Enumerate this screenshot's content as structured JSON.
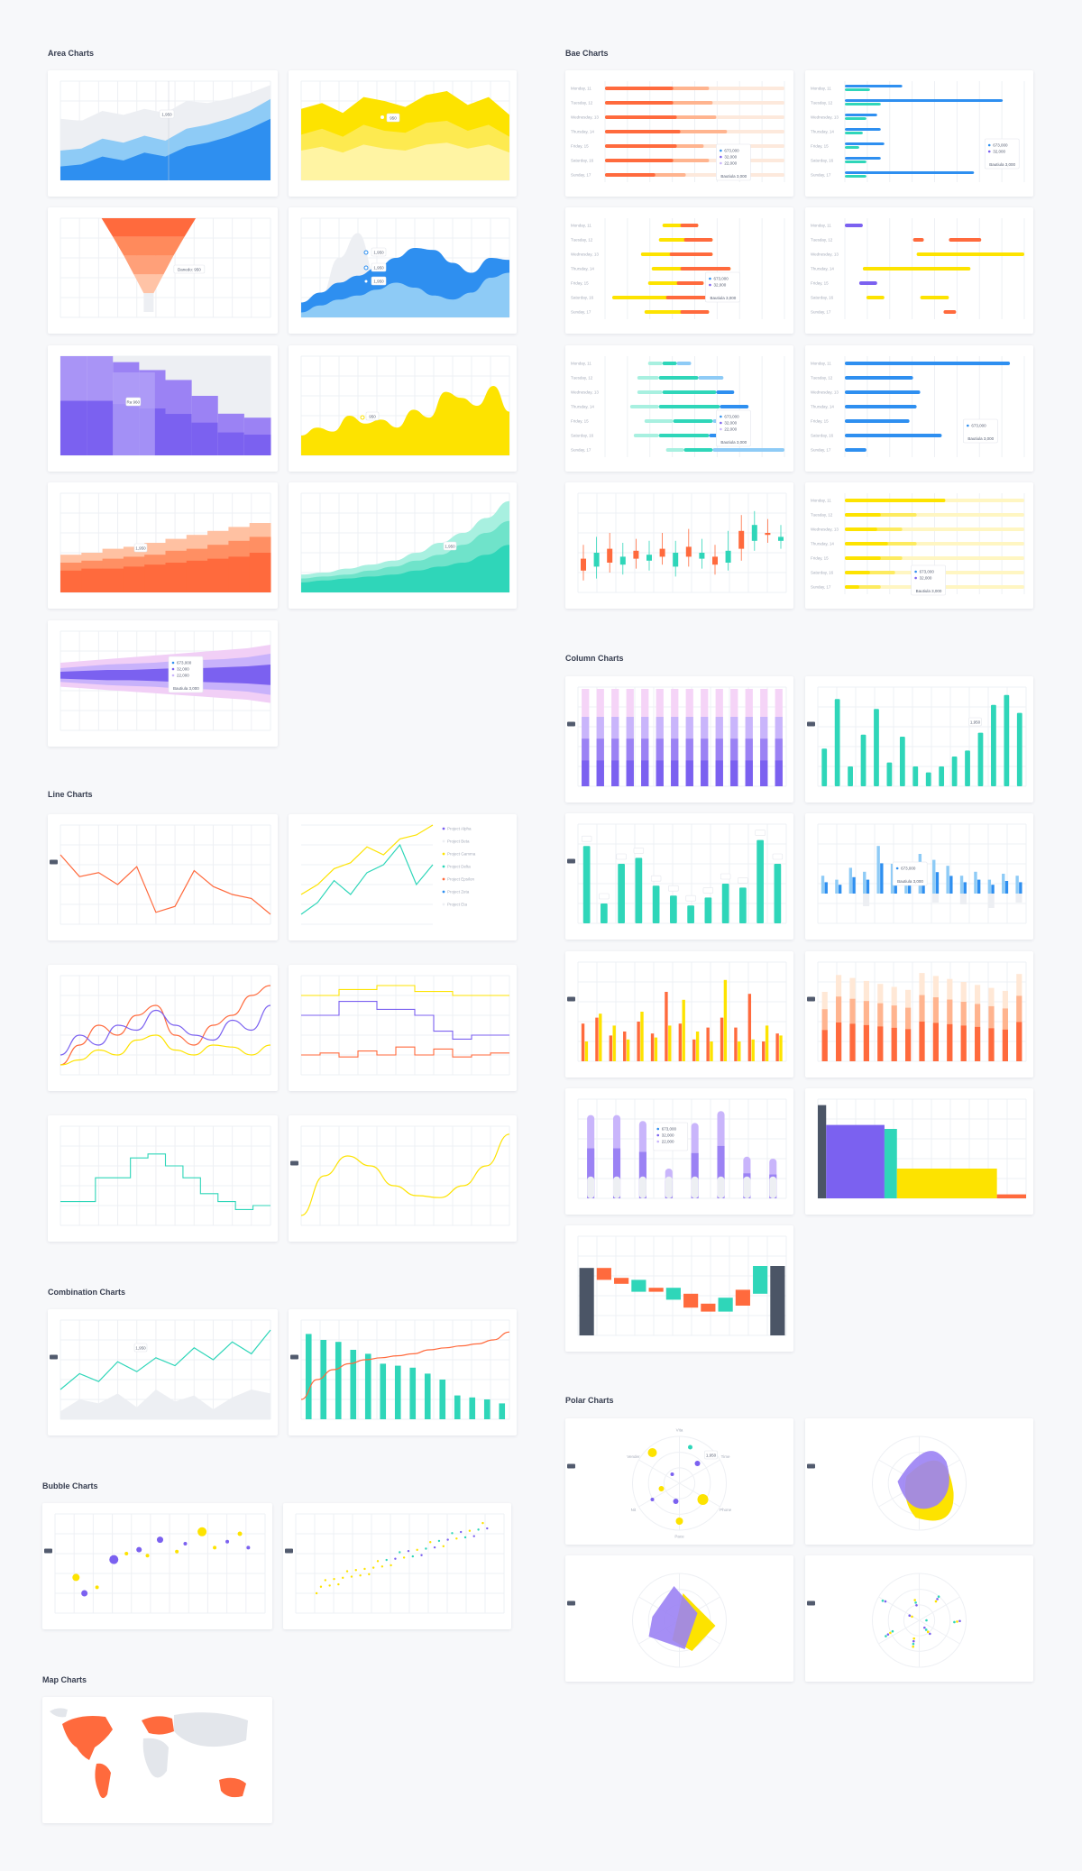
{
  "sections": {
    "area": "Area Charts",
    "bar": "Bae Charts",
    "line": "Line Charts",
    "column": "Column Charts",
    "combination": "Combination Charts",
    "bubble": "Bubble Charts",
    "polar": "Polar Charts",
    "map": "Map Charts"
  },
  "colors": {
    "blue": "#2e8ff0",
    "light_blue": "#8ecbf6",
    "yellow": "#fde300",
    "orange": "#ff6a3d",
    "peach": "#ffb48f",
    "purple": "#7b61f0",
    "lavender": "#c9b5fb",
    "pink": "#f5d4f7",
    "teal": "#2fd6b9",
    "gray": "#edeff3",
    "dark": "#4b5566"
  },
  "chart_data": [
    {
      "id": "area-1",
      "type": "area",
      "series": [
        {
          "values": [
            62,
            60,
            70,
            66,
            72,
            68,
            80,
            78,
            82,
            88,
            96
          ]
        },
        {
          "values": [
            30,
            32,
            42,
            38,
            45,
            40,
            52,
            56,
            62,
            70,
            82
          ]
        },
        {
          "values": [
            14,
            16,
            24,
            20,
            28,
            24,
            34,
            38,
            44,
            52,
            62
          ]
        }
      ],
      "tooltip": "1,950"
    },
    {
      "id": "area-2",
      "type": "area",
      "series": [
        {
          "values": [
            72,
            78,
            68,
            84,
            80,
            74,
            86,
            90,
            76,
            84,
            66
          ]
        },
        {
          "values": [
            46,
            52,
            44,
            56,
            50,
            48,
            58,
            60,
            50,
            56,
            44
          ]
        },
        {
          "values": [
            30,
            34,
            28,
            36,
            32,
            30,
            36,
            38,
            32,
            36,
            28
          ]
        }
      ],
      "tooltip": "950"
    },
    {
      "id": "area-3",
      "type": "area",
      "values": [
        95,
        72,
        50,
        30,
        10
      ],
      "tooltip": "Danedo: 950"
    },
    {
      "id": "area-4",
      "type": "area",
      "tooltips": [
        "1,950",
        "1,950",
        "1,950"
      ]
    },
    {
      "id": "area-5",
      "type": "area",
      "values": [
        100,
        100,
        94,
        86,
        76,
        60,
        42,
        38
      ],
      "tooltip": "Ra 960"
    },
    {
      "id": "area-6",
      "type": "area",
      "values": [
        20,
        28,
        24,
        40,
        32,
        36,
        28,
        46,
        38,
        64,
        58,
        50,
        70,
        44
      ],
      "tooltip": "950"
    },
    {
      "id": "area-7",
      "type": "area",
      "series": [
        {
          "values": [
            38,
            40,
            44,
            46,
            50,
            54,
            58,
            62,
            66,
            70
          ]
        },
        {
          "values": [
            30,
            32,
            34,
            36,
            38,
            42,
            44,
            48,
            52,
            56
          ]
        },
        {
          "values": [
            22,
            24,
            24,
            26,
            28,
            30,
            32,
            34,
            36,
            40
          ]
        }
      ],
      "tooltip": "1,950"
    },
    {
      "id": "area-8",
      "type": "area",
      "series": [
        {
          "values": [
            18,
            20,
            24,
            28,
            32,
            40,
            50,
            60,
            75,
            92
          ]
        },
        {
          "values": [
            14,
            16,
            18,
            22,
            26,
            32,
            38,
            48,
            60,
            72
          ]
        },
        {
          "values": [
            10,
            12,
            14,
            16,
            18,
            22,
            26,
            30,
            38,
            48
          ]
        }
      ],
      "tooltip": "1,950"
    },
    {
      "id": "area-9",
      "type": "area",
      "tooltip_rows": [
        "673,000",
        "32,000",
        "22,000"
      ],
      "tooltip_total": "Bautiula 3,000"
    },
    {
      "id": "bar-1",
      "type": "bar",
      "categories": [
        "Monday, 11",
        "Tuesday, 12",
        "Wednesday, 13",
        "Thursday, 14",
        "Friday, 15",
        "Saturday, 16",
        "Sunday, 17"
      ]
    },
    {
      "id": "bar-2",
      "type": "bar",
      "categories": [
        "Monday, 11",
        "Tuesday, 12",
        "Wednesday, 13",
        "Thursday, 14",
        "Friday, 15",
        "Saturday, 16",
        "Sunday, 17"
      ]
    },
    {
      "id": "bar-3",
      "type": "bar",
      "categories": [
        "Monday, 11",
        "Tuesday, 12",
        "Wednesday, 13",
        "Thursday, 14",
        "Friday, 15",
        "Saturday, 16",
        "Sunday, 17"
      ]
    },
    {
      "id": "bar-4",
      "type": "bar",
      "categories": [
        "Monday, 11",
        "Tuesday, 12",
        "Wednesday, 13",
        "Thursday, 14",
        "Friday, 15",
        "Saturday, 16",
        "Sunday, 17"
      ]
    },
    {
      "id": "bar-5",
      "type": "bar",
      "categories": [
        "Monday, 11",
        "Tuesday, 12",
        "Wednesday, 13",
        "Thursday, 14",
        "Friday, 15",
        "Saturday, 16",
        "Sunday, 17"
      ]
    },
    {
      "id": "bar-6",
      "type": "bar",
      "categories": [
        "Monday, 11",
        "Tuesday, 12",
        "Wednesday, 13",
        "Thursday, 14",
        "Friday, 15",
        "Saturday, 16",
        "Sunday, 17"
      ]
    },
    {
      "id": "bar-7",
      "type": "bar",
      "categories": [
        "Monday, 11",
        "Tuesday, 12",
        "Wednesday, 13",
        "Thursday, 14",
        "Friday, 15",
        "Saturday, 16",
        "Sunday, 17"
      ]
    },
    {
      "id": "col-1",
      "type": "bar"
    },
    {
      "id": "col-2",
      "type": "bar",
      "values": [
        38,
        88,
        20,
        52,
        78,
        24,
        50,
        20,
        14,
        20,
        30,
        36,
        54,
        82,
        92,
        74
      ],
      "tooltip": "1,950"
    },
    {
      "id": "line-1",
      "type": "line",
      "values": [
        70,
        48,
        52,
        40,
        58,
        12,
        18,
        54,
        38,
        30,
        26,
        10
      ]
    },
    {
      "id": "line-2",
      "type": "line",
      "legend": [
        "Project Alpha",
        "Project Beta",
        "Project Gamma",
        "Project Delta",
        "Project Epsilon",
        "Project Zeta",
        "Project Eta"
      ]
    },
    {
      "id": "combo-1",
      "type": "line",
      "tooltip": "1,950"
    },
    {
      "id": "bubble-1",
      "type": "scatter"
    },
    {
      "id": "polar-1",
      "type": "scatter",
      "axes": [
        "Vita",
        "Time",
        "Phone",
        "Pace",
        "Nit",
        "Vender"
      ],
      "tooltip": "1,950"
    }
  ]
}
